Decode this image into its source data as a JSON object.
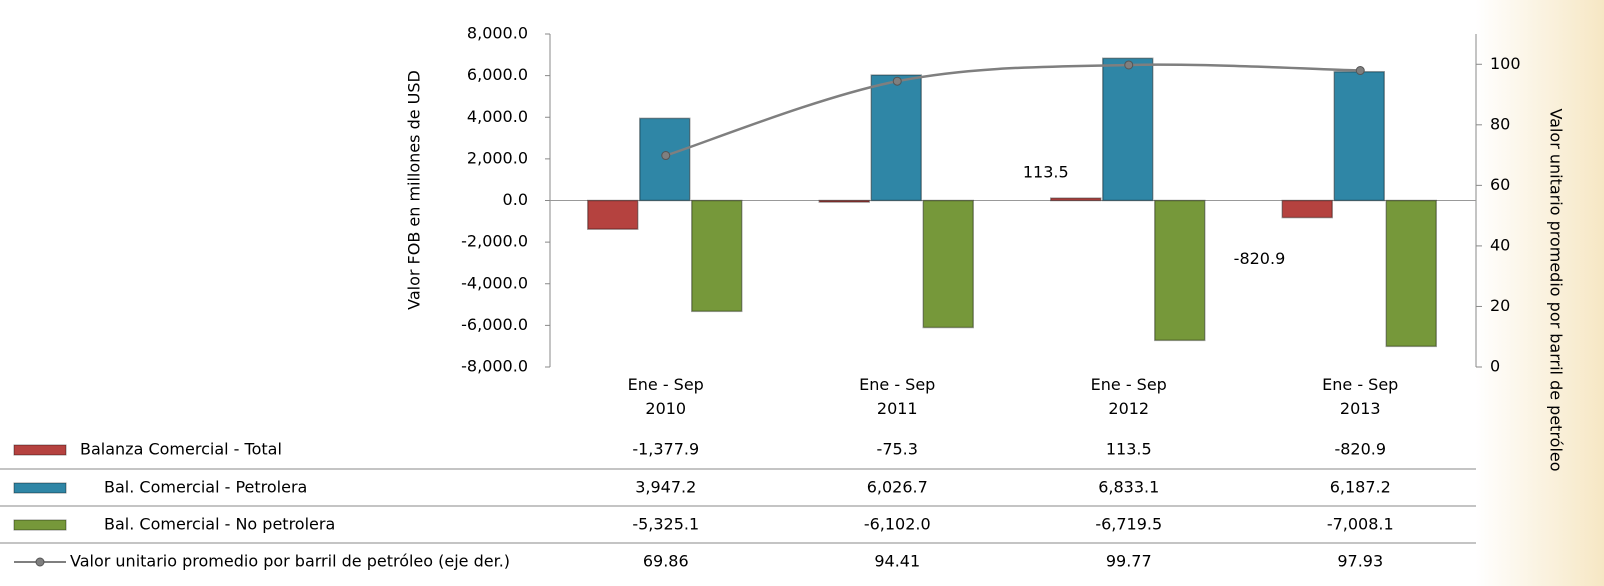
{
  "chart_data": {
    "type": "bar_line_table",
    "categories": [
      "Ene - Sep\n2010",
      "Ene - Sep\n2011",
      "Ene - Sep\n2012",
      "Ene - Sep\n2013"
    ],
    "y_label": "Valor FOB en millones de USD",
    "y2_label": "Valor unitario promedio  por barril de petróleo",
    "ylim": [
      -8000,
      8000
    ],
    "yticks": [
      {
        "value": -8000,
        "label": "-8,000.0"
      },
      {
        "value": -6000,
        "label": "-6,000.0"
      },
      {
        "value": -4000,
        "label": "-4,000.0"
      },
      {
        "value": -2000,
        "label": "-2,000.0"
      },
      {
        "value": 0,
        "label": "0.0"
      },
      {
        "value": 2000,
        "label": "2,000.0"
      },
      {
        "value": 4000,
        "label": "4,000.0"
      },
      {
        "value": 6000,
        "label": "6,000.0"
      },
      {
        "value": 8000,
        "label": "8,000.0"
      }
    ],
    "y2lim": [
      0,
      110
    ],
    "y2ticks": [
      0,
      20,
      40,
      60,
      80,
      100
    ],
    "series": [
      {
        "name": "Balanza Comercial - Total",
        "color": "#b5423f",
        "values": [
          -1377.9,
          -75.3,
          113.5,
          -820.9
        ],
        "value_labels": [
          "-1,377.9",
          "-75.3",
          "113.5",
          "-820.9"
        ]
      },
      {
        "name": "Bal. Comercial - Petrolera",
        "color": "#2f86a6",
        "values": [
          3947.2,
          6026.7,
          6833.1,
          6187.2
        ],
        "value_labels": [
          "3,947.2",
          "6,026.7",
          "6,833.1",
          "6,187.2"
        ]
      },
      {
        "name": "Bal. Comercial - No petrolera",
        "color": "#76983a",
        "values": [
          -5325.1,
          -6102.0,
          -6719.5,
          -7008.1
        ],
        "value_labels": [
          "-5,325.1",
          "-6,102.0",
          "-6,719.5",
          "-7,008.1"
        ]
      },
      {
        "name": "Valor unitario promedio por barril de petróleo (eje der.)",
        "color": "#7f7f7f",
        "type": "line",
        "axis": "y2",
        "values": [
          69.86,
          94.41,
          99.77,
          97.93
        ]
      }
    ]
  }
}
